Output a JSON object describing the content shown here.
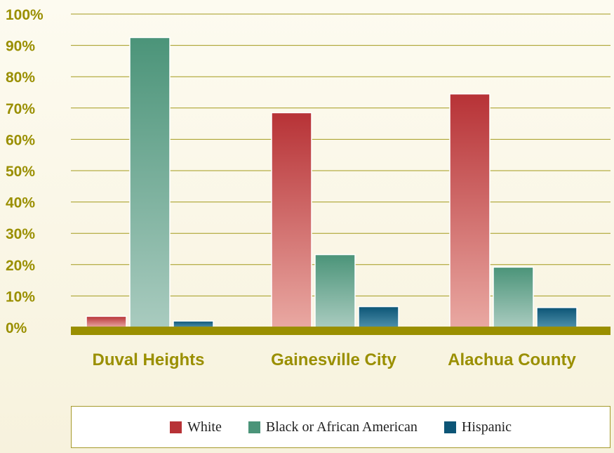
{
  "chart_data": {
    "type": "bar",
    "categories": [
      "Duval Heights",
      "Gainesville City",
      "Alachua County"
    ],
    "series": [
      {
        "name": "White",
        "values": [
          3.5,
          68.5,
          74.5
        ],
        "color": "#b73236"
      },
      {
        "name": "Black or African American",
        "values": [
          92.5,
          23.2,
          19.2
        ],
        "color": "#4b9479"
      },
      {
        "name": "Hispanic",
        "values": [
          2.0,
          6.6,
          6.3
        ],
        "color": "#0c5576"
      }
    ],
    "yticks": [
      "0%",
      "10%",
      "20%",
      "30%",
      "40%",
      "50%",
      "60%",
      "70%",
      "80%",
      "90%",
      "100%"
    ],
    "ylim": [
      0,
      100
    ],
    "legend_position": "bottom",
    "grid": true,
    "title": "",
    "xlabel": "",
    "ylabel": ""
  }
}
